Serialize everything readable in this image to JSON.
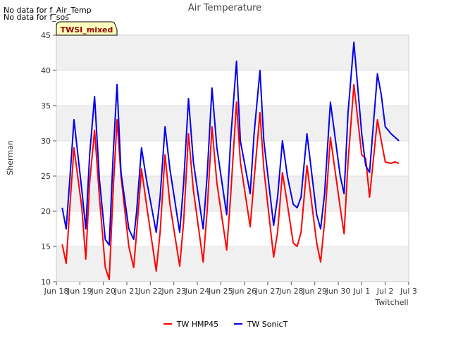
{
  "notes": [
    "No data for f_Air_Temp",
    "No data for f_sos"
  ],
  "chart_data": {
    "type": "line",
    "title": "Air Temperature",
    "xlabel": "Twitchell",
    "ylabel": "Sherman",
    "badge": "TWSI_mixed",
    "x_ticks": [
      "Jun 18",
      "Jun 19",
      "Jun 20",
      "Jun 21",
      "Jun 22",
      "Jun 23",
      "Jun 24",
      "Jun 25",
      "Jun 26",
      "Jun 27",
      "Jun 28",
      "Jun 29",
      "Jun 30",
      "Jul 1",
      "Jul 2",
      "Jul 3"
    ],
    "xlim": [
      "2024-06-18",
      "2024-07-03"
    ],
    "y_ticks": [
      10,
      15,
      20,
      25,
      30,
      35,
      40,
      45
    ],
    "ylim": [
      10,
      45
    ],
    "grid": "horizontal bands",
    "legend_position": "bottom-center",
    "series": [
      {
        "name": "TW HMP45",
        "color": "#ff0000",
        "x": [
          "2024-06-18 06:00",
          "2024-06-18 10:00",
          "2024-06-18 14:00",
          "2024-06-18 18:00",
          "2024-06-19 02:00",
          "2024-06-19 06:00",
          "2024-06-19 10:00",
          "2024-06-19 15:00",
          "2024-06-19 20:00",
          "2024-06-20 02:00",
          "2024-06-20 06:00",
          "2024-06-20 10:00",
          "2024-06-20 14:00",
          "2024-06-20 18:00",
          "2024-06-21 02:00",
          "2024-06-21 07:00",
          "2024-06-21 10:00",
          "2024-06-21 15:00",
          "2024-06-21 20:00",
          "2024-06-22 06:00",
          "2024-06-22 10:00",
          "2024-06-22 15:00",
          "2024-06-22 20:00",
          "2024-06-23 06:00",
          "2024-06-23 10:00",
          "2024-06-23 15:00",
          "2024-06-23 20:00",
          "2024-06-24 06:00",
          "2024-06-24 10:00",
          "2024-06-24 15:00",
          "2024-06-24 20:00",
          "2024-06-25 06:00",
          "2024-06-25 10:00",
          "2024-06-25 16:00",
          "2024-06-25 20:00",
          "2024-06-26 06:00",
          "2024-06-26 10:00",
          "2024-06-26 16:00",
          "2024-06-26 20:00",
          "2024-06-27 06:00",
          "2024-06-27 10:00",
          "2024-06-27 15:00",
          "2024-06-27 20:00",
          "2024-06-28 02:00",
          "2024-06-28 06:00",
          "2024-06-28 10:00",
          "2024-06-28 16:00",
          "2024-06-29 02:00",
          "2024-06-29 06:00",
          "2024-06-29 10:00",
          "2024-06-29 16:00",
          "2024-06-30 02:00",
          "2024-06-30 06:00",
          "2024-06-30 10:00",
          "2024-06-30 16:00",
          "2024-07-01 00:00",
          "2024-07-01 04:00",
          "2024-07-01 08:00",
          "2024-07-01 16:00",
          "2024-07-01 20:00",
          "2024-07-02 00:00",
          "2024-07-02 06:00",
          "2024-07-02 10:00",
          "2024-07-02 14:00"
        ],
        "y": [
          15.3,
          12.6,
          21.0,
          29.0,
          20.5,
          13.2,
          24.0,
          31.5,
          22.0,
          12.0,
          10.3,
          23.0,
          33.0,
          25.0,
          15.0,
          12.0,
          17.0,
          26.0,
          21.0,
          11.5,
          17.0,
          28.0,
          21.0,
          12.2,
          18.5,
          31.0,
          23.0,
          12.8,
          20.0,
          32.0,
          24.0,
          14.5,
          22.0,
          35.5,
          27.0,
          17.8,
          24.5,
          34.0,
          26.0,
          13.5,
          17.0,
          25.5,
          21.0,
          15.5,
          15.0,
          17.0,
          26.5,
          15.5,
          12.8,
          18.5,
          30.5,
          20.5,
          16.8,
          27.0,
          38.0,
          28.0,
          27.5,
          22.0,
          33.0,
          30.0,
          27.0,
          26.8,
          27.0,
          26.8
        ]
      },
      {
        "name": "TW SonicT",
        "color": "#0000ee",
        "x": [
          "2024-06-18 06:00",
          "2024-06-18 10:00",
          "2024-06-18 14:00",
          "2024-06-18 18:00",
          "2024-06-19 02:00",
          "2024-06-19 06:00",
          "2024-06-19 10:00",
          "2024-06-19 15:00",
          "2024-06-19 20:00",
          "2024-06-20 02:00",
          "2024-06-20 06:00",
          "2024-06-20 10:00",
          "2024-06-20 14:00",
          "2024-06-20 18:00",
          "2024-06-21 02:00",
          "2024-06-21 07:00",
          "2024-06-21 10:00",
          "2024-06-21 15:00",
          "2024-06-21 20:00",
          "2024-06-22 06:00",
          "2024-06-22 10:00",
          "2024-06-22 15:00",
          "2024-06-22 20:00",
          "2024-06-23 06:00",
          "2024-06-23 10:00",
          "2024-06-23 15:00",
          "2024-06-23 20:00",
          "2024-06-24 06:00",
          "2024-06-24 10:00",
          "2024-06-24 15:00",
          "2024-06-24 20:00",
          "2024-06-25 06:00",
          "2024-06-25 10:00",
          "2024-06-25 16:00",
          "2024-06-25 20:00",
          "2024-06-26 06:00",
          "2024-06-26 10:00",
          "2024-06-26 16:00",
          "2024-06-26 20:00",
          "2024-06-27 06:00",
          "2024-06-27 10:00",
          "2024-06-27 15:00",
          "2024-06-27 20:00",
          "2024-06-28 02:00",
          "2024-06-28 06:00",
          "2024-06-28 10:00",
          "2024-06-28 16:00",
          "2024-06-29 02:00",
          "2024-06-29 06:00",
          "2024-06-29 10:00",
          "2024-06-29 16:00",
          "2024-06-30 02:00",
          "2024-06-30 06:00",
          "2024-06-30 10:00",
          "2024-06-30 16:00",
          "2024-07-01 00:00",
          "2024-07-01 04:00",
          "2024-07-01 08:00",
          "2024-07-01 16:00",
          "2024-07-01 20:00",
          "2024-07-02 00:00",
          "2024-07-02 06:00",
          "2024-07-02 10:00",
          "2024-07-02 14:00"
        ],
        "y": [
          20.5,
          17.5,
          25.0,
          33.0,
          23.0,
          17.5,
          28.0,
          36.3,
          24.5,
          16.0,
          15.2,
          28.0,
          38.0,
          25.5,
          17.5,
          16.0,
          20.0,
          29.0,
          24.5,
          17.0,
          22.0,
          32.0,
          26.0,
          17.0,
          24.0,
          36.0,
          27.0,
          17.5,
          25.0,
          37.5,
          29.0,
          19.5,
          30.0,
          41.3,
          30.0,
          22.5,
          31.0,
          40.0,
          30.0,
          18.0,
          22.0,
          30.0,
          25.0,
          21.0,
          20.5,
          22.0,
          31.0,
          19.5,
          17.5,
          22.5,
          35.5,
          25.0,
          22.5,
          34.0,
          44.0,
          31.0,
          26.5,
          25.5,
          39.5,
          36.5,
          32.0,
          31.0,
          30.5,
          30.0
        ]
      }
    ]
  }
}
